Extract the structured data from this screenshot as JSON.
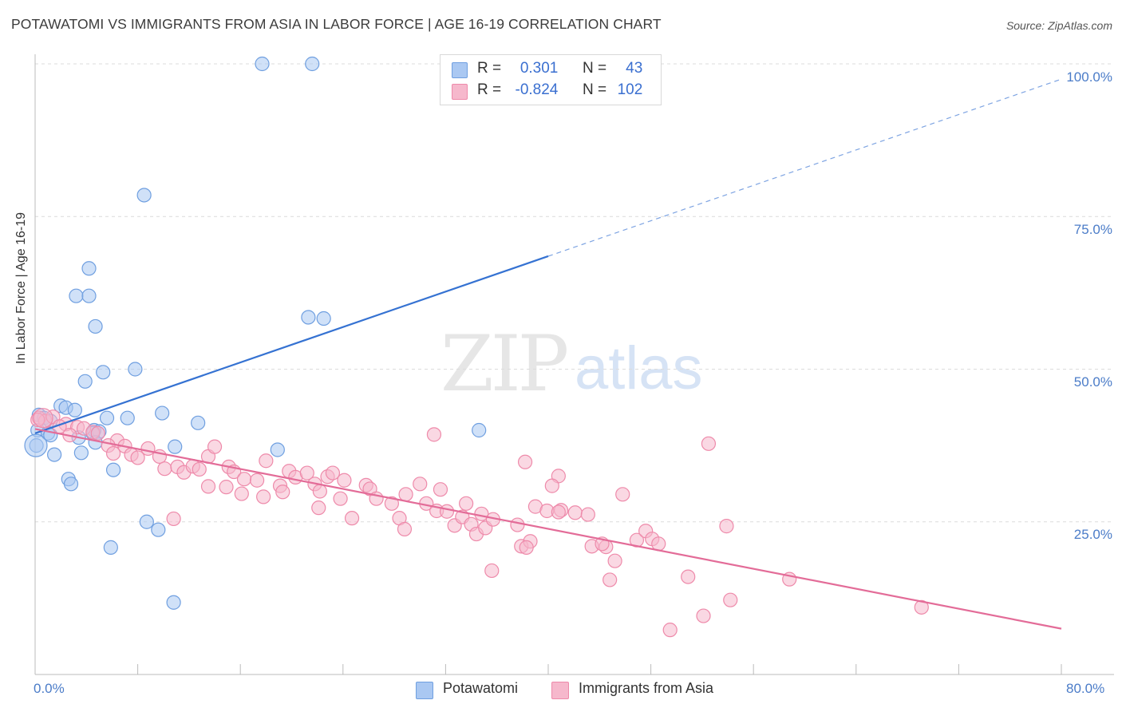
{
  "header": {
    "title": "POTAWATOMI VS IMMIGRANTS FROM ASIA IN LABOR FORCE | AGE 16-19 CORRELATION CHART",
    "source": "Source: ZipAtlas.com"
  },
  "watermark": {
    "zip": "ZIP",
    "atlas": "atlas"
  },
  "legend": {
    "rows": [
      {
        "r_label": "R = ",
        "r_value": "0.301",
        "n_label": "N = ",
        "n_value": "43",
        "color": "#aac8f2"
      },
      {
        "r_label": "R = ",
        "r_value": "-0.824",
        "n_label": "N = ",
        "n_value": "102",
        "color": "#f6b8cc"
      }
    ]
  },
  "bottom_legend": {
    "items": [
      {
        "label": "Potawatomi",
        "color": "#aac8f2"
      },
      {
        "label": "Immigrants from Asia",
        "color": "#f6b8cc"
      }
    ]
  },
  "chart_data": {
    "type": "scatter",
    "title": "POTAWATOMI VS IMMIGRANTS FROM ASIA IN LABOR FORCE | AGE 16-19 CORRELATION CHART",
    "xlabel": "",
    "ylabel": "In Labor Force | Age 16-19",
    "xlim": [
      0,
      80
    ],
    "ylim": [
      0,
      100
    ],
    "x_tick_labels": [
      "0.0%",
      "80.0%"
    ],
    "y_tick_labels": [
      "25.0%",
      "50.0%",
      "75.0%",
      "100.0%"
    ],
    "y_ticks": [
      25,
      50,
      75,
      100
    ],
    "grid": true,
    "legend_position": "top-center",
    "series": [
      {
        "name": "Potawatomi",
        "color": "#6f9fe0",
        "fill": "#aac8f2",
        "trend": {
          "x": [
            0,
            40
          ],
          "y": [
            39.5,
            68.5
          ],
          "dashed_to": [
            80,
            97.5
          ]
        },
        "points": [
          [
            17.7,
            100
          ],
          [
            21.6,
            100
          ],
          [
            8.5,
            78.5
          ],
          [
            4.2,
            66.5
          ],
          [
            3.2,
            62
          ],
          [
            4.2,
            62
          ],
          [
            21.3,
            58.5
          ],
          [
            22.5,
            58.3
          ],
          [
            4.7,
            57
          ],
          [
            5.3,
            49.5
          ],
          [
            7.8,
            50
          ],
          [
            3.9,
            48
          ],
          [
            2.0,
            44
          ],
          [
            2.4,
            43.7
          ],
          [
            3.1,
            43.3
          ],
          [
            9.9,
            42.8
          ],
          [
            5.6,
            42
          ],
          [
            7.2,
            42
          ],
          [
            0.3,
            42.5
          ],
          [
            0.7,
            42
          ],
          [
            1.2,
            41.5
          ],
          [
            12.7,
            41.2
          ],
          [
            0.2,
            40
          ],
          [
            1.0,
            39.5
          ],
          [
            4.6,
            40
          ],
          [
            5.0,
            39.8
          ],
          [
            4.5,
            39.5
          ],
          [
            1.2,
            39.2
          ],
          [
            3.4,
            38.8
          ],
          [
            4.7,
            38
          ],
          [
            34.6,
            40
          ],
          [
            10.9,
            37.3
          ],
          [
            18.9,
            36.8
          ],
          [
            0.1,
            37.5
          ],
          [
            1.5,
            36
          ],
          [
            3.6,
            36.3
          ],
          [
            6.1,
            33.5
          ],
          [
            2.6,
            32
          ],
          [
            2.8,
            31.2
          ],
          [
            8.7,
            25
          ],
          [
            9.6,
            23.7
          ],
          [
            5.9,
            20.8
          ],
          [
            10.8,
            11.8
          ]
        ]
      },
      {
        "name": "Immigrants from Asia",
        "color": "#ee8aaa",
        "fill": "#f6b8cc",
        "trend": {
          "x": [
            0,
            80
          ],
          "y": [
            40.2,
            7.5
          ]
        },
        "points": [
          [
            0.3,
            42
          ],
          [
            0.8,
            41.5
          ],
          [
            1.4,
            42.2
          ],
          [
            2.4,
            41
          ],
          [
            3.3,
            40.5
          ],
          [
            3.8,
            40.3
          ],
          [
            4.5,
            39.7
          ],
          [
            4.9,
            39.5
          ],
          [
            6.4,
            38.3
          ],
          [
            5.7,
            37.5
          ],
          [
            7.0,
            37.4
          ],
          [
            7.5,
            36
          ],
          [
            8.0,
            35.5
          ],
          [
            8.8,
            37
          ],
          [
            9.7,
            35.7
          ],
          [
            10.1,
            33.7
          ],
          [
            11.1,
            34
          ],
          [
            11.6,
            33.1
          ],
          [
            12.3,
            34.1
          ],
          [
            12.8,
            33.6
          ],
          [
            13.5,
            35.7
          ],
          [
            14.0,
            37.3
          ],
          [
            15.1,
            34
          ],
          [
            15.5,
            33.2
          ],
          [
            16.3,
            32
          ],
          [
            17.3,
            31.8
          ],
          [
            18.0,
            35
          ],
          [
            19.1,
            30.9
          ],
          [
            19.8,
            33.3
          ],
          [
            20.3,
            32.3
          ],
          [
            21.2,
            33
          ],
          [
            21.8,
            31.2
          ],
          [
            22.2,
            30
          ],
          [
            22.8,
            32.4
          ],
          [
            23.2,
            33
          ],
          [
            24.1,
            31.8
          ],
          [
            13.5,
            30.8
          ],
          [
            14.9,
            30.7
          ],
          [
            16.1,
            29.6
          ],
          [
            17.8,
            29.1
          ],
          [
            19.3,
            29.9
          ],
          [
            22.1,
            27.3
          ],
          [
            23.8,
            28.8
          ],
          [
            24.7,
            25.6
          ],
          [
            25.8,
            31
          ],
          [
            26.1,
            30.4
          ],
          [
            26.6,
            28.8
          ],
          [
            27.8,
            28
          ],
          [
            28.4,
            25.6
          ],
          [
            28.9,
            29.5
          ],
          [
            28.8,
            23.8
          ],
          [
            30.0,
            31.2
          ],
          [
            30.5,
            28
          ],
          [
            31.3,
            26.8
          ],
          [
            32.1,
            26.7
          ],
          [
            32.7,
            24.4
          ],
          [
            33.3,
            25.8
          ],
          [
            34.0,
            24.6
          ],
          [
            34.8,
            26.3
          ],
          [
            34.4,
            23
          ],
          [
            35.1,
            24
          ],
          [
            35.7,
            25.4
          ],
          [
            31.6,
            30.3
          ],
          [
            33.6,
            28
          ],
          [
            31.1,
            39.3
          ],
          [
            37.6,
            24.5
          ],
          [
            37.9,
            21
          ],
          [
            38.6,
            21.8
          ],
          [
            38.3,
            20.8
          ],
          [
            35.6,
            17
          ],
          [
            40.8,
            32.5
          ],
          [
            40.3,
            30.9
          ],
          [
            39.0,
            27.5
          ],
          [
            39.9,
            26.8
          ],
          [
            41.0,
            26.9
          ],
          [
            38.2,
            34.8
          ],
          [
            40.8,
            26.6
          ],
          [
            42.1,
            26.5
          ],
          [
            43.1,
            26.2
          ],
          [
            43.4,
            21
          ],
          [
            44.5,
            20.9
          ],
          [
            44.2,
            21.4
          ],
          [
            45.2,
            18.6
          ],
          [
            44.8,
            15.5
          ],
          [
            45.8,
            29.5
          ],
          [
            46.9,
            22
          ],
          [
            47.6,
            23.5
          ],
          [
            48.1,
            22.2
          ],
          [
            48.6,
            21.4
          ],
          [
            49.5,
            7.3
          ],
          [
            50.9,
            16
          ],
          [
            52.1,
            9.6
          ],
          [
            52.5,
            37.8
          ],
          [
            53.9,
            24.3
          ],
          [
            54.2,
            12.2
          ],
          [
            58.8,
            15.6
          ],
          [
            69.1,
            11
          ],
          [
            0.2,
            41.7
          ],
          [
            1.9,
            40.6
          ],
          [
            2.7,
            39.2
          ],
          [
            6.1,
            36.2
          ],
          [
            10.8,
            25.5
          ]
        ]
      }
    ]
  }
}
